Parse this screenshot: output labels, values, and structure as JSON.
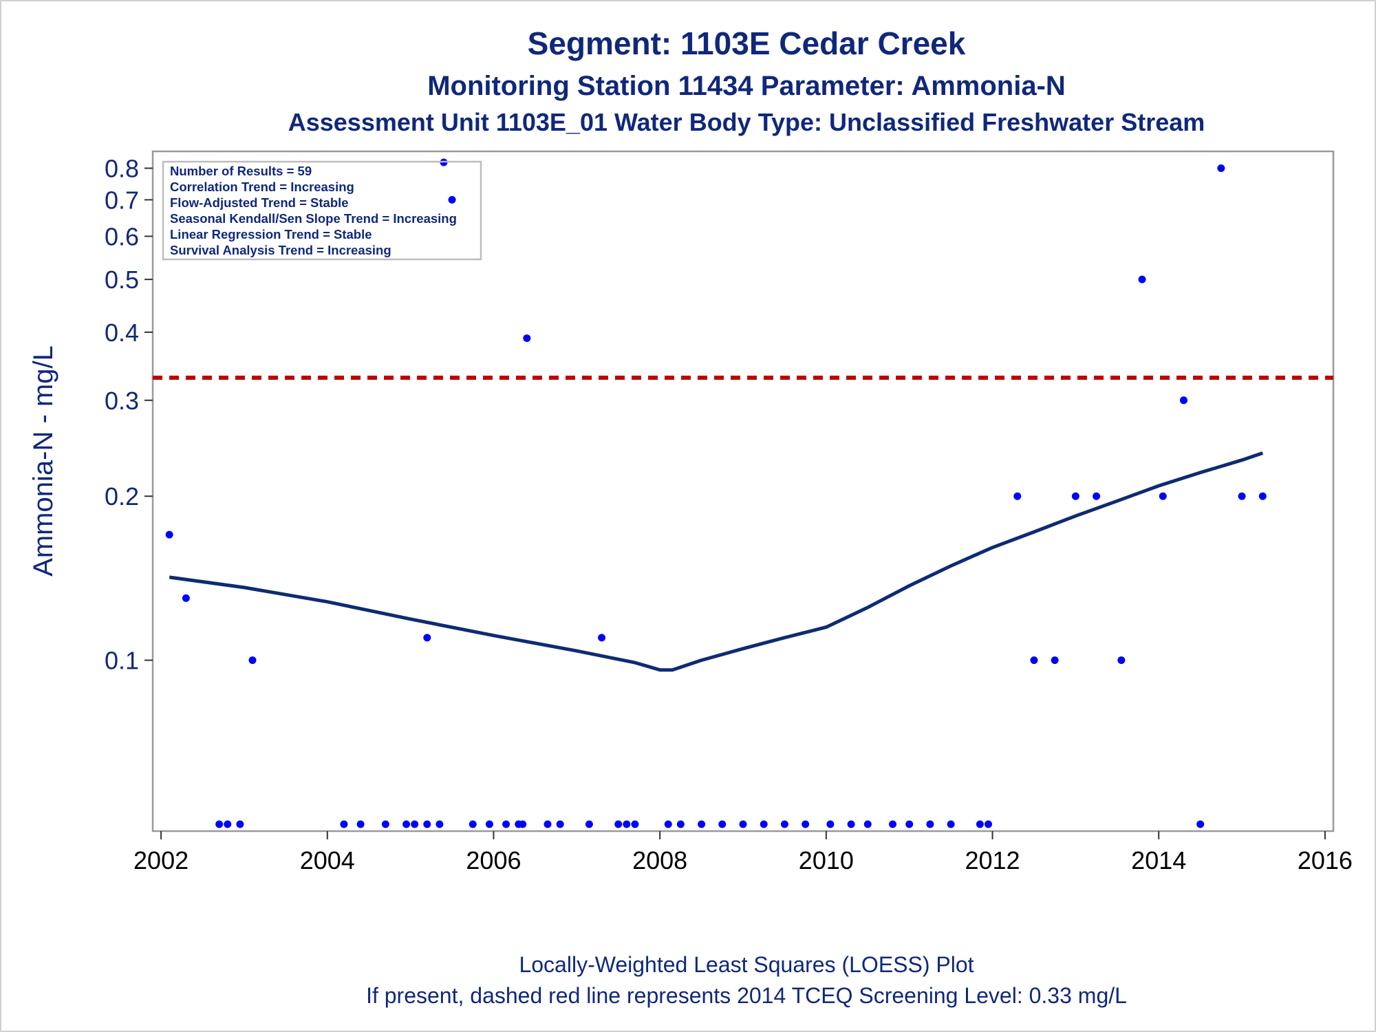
{
  "chart_data": {
    "type": "scatter",
    "title": "Segment: 1103E  Cedar Creek",
    "subtitle": "Monitoring Station 11434 Parameter: Ammonia-N",
    "subtitle2": "Assessment Unit 1103E_01   Water Body Type: Unclassified Freshwater Stream",
    "ylabel": "Ammonia-N - mg/L",
    "xlabel": "",
    "yscale": "log",
    "ylim": [
      0.05,
      0.82
    ],
    "xlim": [
      2001.9,
      2016.1
    ],
    "x_ticks": [
      2002,
      2004,
      2006,
      2008,
      2010,
      2012,
      2014,
      2016
    ],
    "y_ticks": [
      0.1,
      0.2,
      0.3,
      0.4,
      0.5,
      0.6,
      0.7,
      0.8
    ],
    "grid": false,
    "legend_position": "top-left",
    "stats_box": [
      "Number of Results = 59",
      "Correlation Trend = Increasing",
      "Flow-Adjusted Trend = Stable",
      "Seasonal Kendall/Sen Slope Trend = Increasing",
      "Linear Regression Trend = Stable",
      "Survival Analysis Trend = Increasing"
    ],
    "screening_level": 0.33,
    "points": [
      {
        "x": 2002.1,
        "y": 0.17
      },
      {
        "x": 2002.3,
        "y": 0.13
      },
      {
        "x": 2003.1,
        "y": 0.1
      },
      {
        "x": 2005.2,
        "y": 0.11
      },
      {
        "x": 2005.4,
        "y": 0.82
      },
      {
        "x": 2005.5,
        "y": 0.7
      },
      {
        "x": 2006.4,
        "y": 0.39
      },
      {
        "x": 2007.3,
        "y": 0.11
      },
      {
        "x": 2012.3,
        "y": 0.2
      },
      {
        "x": 2012.5,
        "y": 0.1
      },
      {
        "x": 2012.75,
        "y": 0.1
      },
      {
        "x": 2013.0,
        "y": 0.2
      },
      {
        "x": 2013.25,
        "y": 0.2
      },
      {
        "x": 2013.55,
        "y": 0.1
      },
      {
        "x": 2013.8,
        "y": 0.5
      },
      {
        "x": 2014.3,
        "y": 0.3
      },
      {
        "x": 2014.05,
        "y": 0.2
      },
      {
        "x": 2014.75,
        "y": 0.8
      },
      {
        "x": 2015.0,
        "y": 0.2
      },
      {
        "x": 2015.25,
        "y": 0.2
      },
      {
        "x": 2002.7,
        "y": 0.05
      },
      {
        "x": 2002.8,
        "y": 0.05
      },
      {
        "x": 2002.95,
        "y": 0.05
      },
      {
        "x": 2004.2,
        "y": 0.05
      },
      {
        "x": 2004.4,
        "y": 0.05
      },
      {
        "x": 2004.7,
        "y": 0.05
      },
      {
        "x": 2004.95,
        "y": 0.05
      },
      {
        "x": 2005.05,
        "y": 0.05
      },
      {
        "x": 2005.2,
        "y": 0.05
      },
      {
        "x": 2005.35,
        "y": 0.05
      },
      {
        "x": 2005.75,
        "y": 0.05
      },
      {
        "x": 2005.95,
        "y": 0.05
      },
      {
        "x": 2006.15,
        "y": 0.05
      },
      {
        "x": 2006.3,
        "y": 0.05
      },
      {
        "x": 2006.35,
        "y": 0.05
      },
      {
        "x": 2006.65,
        "y": 0.05
      },
      {
        "x": 2006.8,
        "y": 0.05
      },
      {
        "x": 2007.15,
        "y": 0.05
      },
      {
        "x": 2007.5,
        "y": 0.05
      },
      {
        "x": 2007.6,
        "y": 0.05
      },
      {
        "x": 2007.7,
        "y": 0.05
      },
      {
        "x": 2008.1,
        "y": 0.05
      },
      {
        "x": 2008.25,
        "y": 0.05
      },
      {
        "x": 2008.5,
        "y": 0.05
      },
      {
        "x": 2008.75,
        "y": 0.05
      },
      {
        "x": 2009.0,
        "y": 0.05
      },
      {
        "x": 2009.25,
        "y": 0.05
      },
      {
        "x": 2009.5,
        "y": 0.05
      },
      {
        "x": 2009.75,
        "y": 0.05
      },
      {
        "x": 2010.05,
        "y": 0.05
      },
      {
        "x": 2010.3,
        "y": 0.05
      },
      {
        "x": 2010.5,
        "y": 0.05
      },
      {
        "x": 2010.8,
        "y": 0.05
      },
      {
        "x": 2011.0,
        "y": 0.05
      },
      {
        "x": 2011.25,
        "y": 0.05
      },
      {
        "x": 2011.5,
        "y": 0.05
      },
      {
        "x": 2011.85,
        "y": 0.05
      },
      {
        "x": 2011.95,
        "y": 0.05
      },
      {
        "x": 2014.5,
        "y": 0.05
      }
    ],
    "loess": {
      "x": [
        2002.1,
        2003.0,
        2004.0,
        2005.0,
        2006.0,
        2007.0,
        2007.7,
        2008.0,
        2008.15,
        2008.5,
        2009.0,
        2009.5,
        2010.0,
        2010.5,
        2011.0,
        2011.5,
        2012.0,
        2012.5,
        2013.0,
        2013.5,
        2014.0,
        2014.5,
        2015.0,
        2015.25
      ],
      "y": [
        0.142,
        0.136,
        0.128,
        0.119,
        0.111,
        0.104,
        0.099,
        0.096,
        0.096,
        0.1,
        0.105,
        0.11,
        0.115,
        0.125,
        0.137,
        0.149,
        0.161,
        0.172,
        0.184,
        0.196,
        0.209,
        0.221,
        0.233,
        0.24
      ]
    },
    "colors": {
      "points": "#0000ff",
      "loess": "#0e2b73",
      "screening_line": "#c00000",
      "frame": "#999999",
      "text": "#10287a"
    }
  },
  "footnotes": [
    "Locally-Weighted Least Squares (LOESS) Plot",
    "If present, dashed red line represents 2014 TCEQ Screening Level: 0.33 mg/L"
  ]
}
